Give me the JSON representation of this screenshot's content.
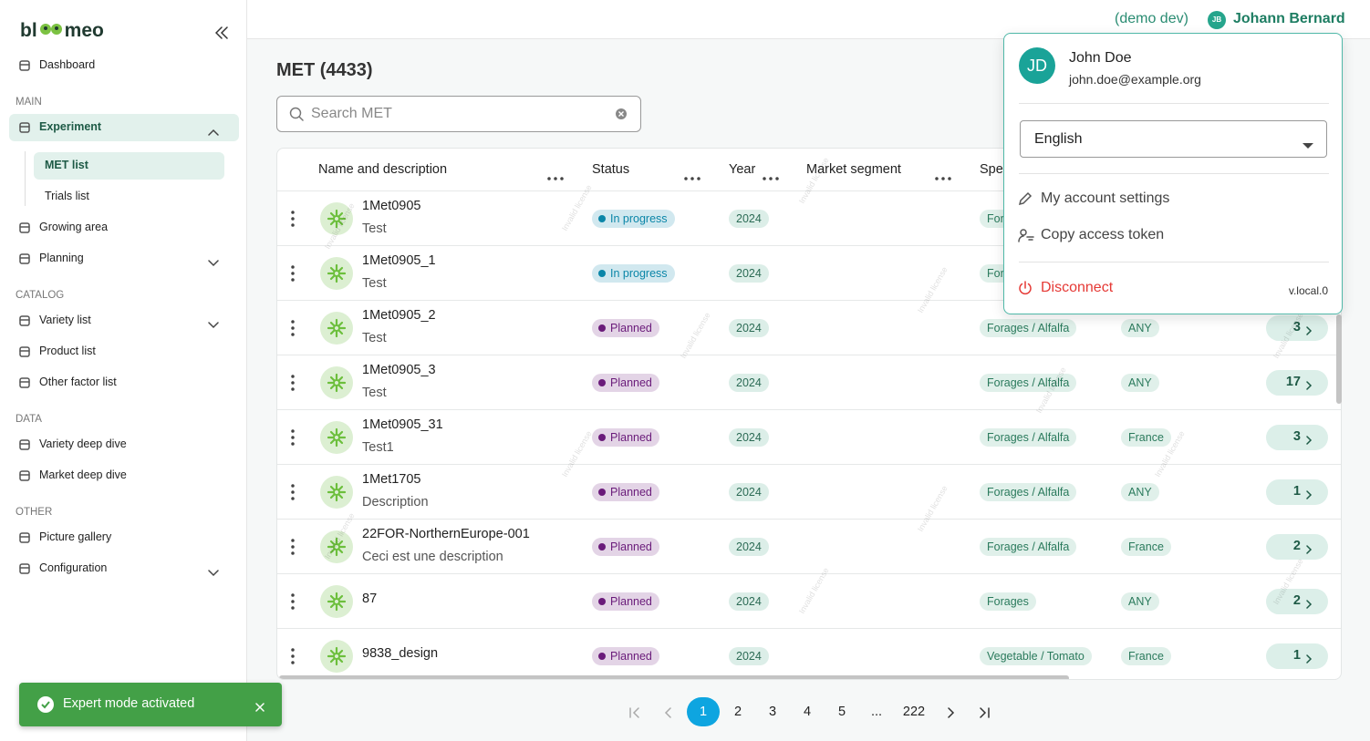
{
  "sidebar": {
    "logo_left": "bl",
    "logo_right": "meo",
    "top": [
      "Dashboard"
    ],
    "sections": [
      {
        "title": "MAIN",
        "items": [
          {
            "label": "Experiment",
            "chevron": "up",
            "active": true,
            "children": [
              "MET list",
              "Trials list"
            ]
          },
          {
            "label": "Growing area"
          },
          {
            "label": "Planning",
            "chevron": "down"
          }
        ]
      },
      {
        "title": "CATALOG",
        "items": [
          {
            "label": "Variety list",
            "chevron": "down"
          },
          {
            "label": "Product list"
          },
          {
            "label": "Other factor list"
          }
        ]
      },
      {
        "title": "DATA",
        "items": [
          {
            "label": "Variety deep dive"
          },
          {
            "label": "Market deep dive"
          }
        ]
      },
      {
        "title": "OTHER",
        "items": [
          {
            "label": "Picture gallery"
          },
          {
            "label": "Configuration",
            "chevron": "down"
          }
        ]
      }
    ]
  },
  "header": {
    "env": "(demo dev)",
    "user_initials": "JB",
    "user_name": "Johann Bernard"
  },
  "page": {
    "title": "MET (4433)",
    "search_placeholder": "Search MET",
    "watermark": "Invalid license"
  },
  "table": {
    "columns": [
      "Name and description",
      "Status",
      "Year",
      "Market segment",
      "Spe"
    ],
    "rows": [
      {
        "name": "1Met0905",
        "description": "Test",
        "status": "In progress",
        "status_color": "#0b86a8",
        "year": "2024",
        "species": "For"
      },
      {
        "name": "1Met0905_1",
        "description": "Test",
        "status": "In progress",
        "status_color": "#0b86a8",
        "year": "2024",
        "species": "For"
      },
      {
        "name": "1Met0905_2",
        "description": "Test",
        "status": "Planned",
        "status_color": "#6a1b7a",
        "year": "2024",
        "species": "Forages / Alfalfa",
        "region": "ANY",
        "count": "3"
      },
      {
        "name": "1Met0905_3",
        "description": "Test",
        "status": "Planned",
        "status_color": "#6a1b7a",
        "year": "2024",
        "species": "Forages / Alfalfa",
        "region": "ANY",
        "count": "17"
      },
      {
        "name": "1Met0905_31",
        "description": "Test1",
        "status": "Planned",
        "status_color": "#6a1b7a",
        "year": "2024",
        "species": "Forages / Alfalfa",
        "region": "France",
        "count": "3"
      },
      {
        "name": "1Met1705",
        "description": "Description",
        "status": "Planned",
        "status_color": "#6a1b7a",
        "year": "2024",
        "species": "Forages / Alfalfa",
        "region": "ANY",
        "count": "1"
      },
      {
        "name": "22FOR-NorthernEurope-001",
        "description": "Ceci est une description",
        "status": "Planned",
        "status_color": "#6a1b7a",
        "year": "2024",
        "species": "Forages / Alfalfa",
        "region": "France",
        "count": "2"
      },
      {
        "name": "87",
        "status": "Planned",
        "status_color": "#6a1b7a",
        "year": "2024",
        "species": "Forages",
        "region": "ANY",
        "count": "2"
      },
      {
        "name": "9838_design",
        "status": "Planned",
        "status_color": "#6a1b7a",
        "year": "2024",
        "species": "Vegetable / Tomato",
        "region": "France",
        "count": "1"
      }
    ]
  },
  "pagination": {
    "pages": [
      "1",
      "2",
      "3",
      "4",
      "5",
      "...",
      "222"
    ],
    "current": 0
  },
  "toast": {
    "message": "Expert mode activated"
  },
  "user_menu": {
    "initials": "JD",
    "name": "John Doe",
    "email": "john.doe@example.org",
    "language": "English",
    "items": [
      "My account settings",
      "Copy access token"
    ],
    "disconnect": "Disconnect",
    "version": "v.local.0"
  }
}
